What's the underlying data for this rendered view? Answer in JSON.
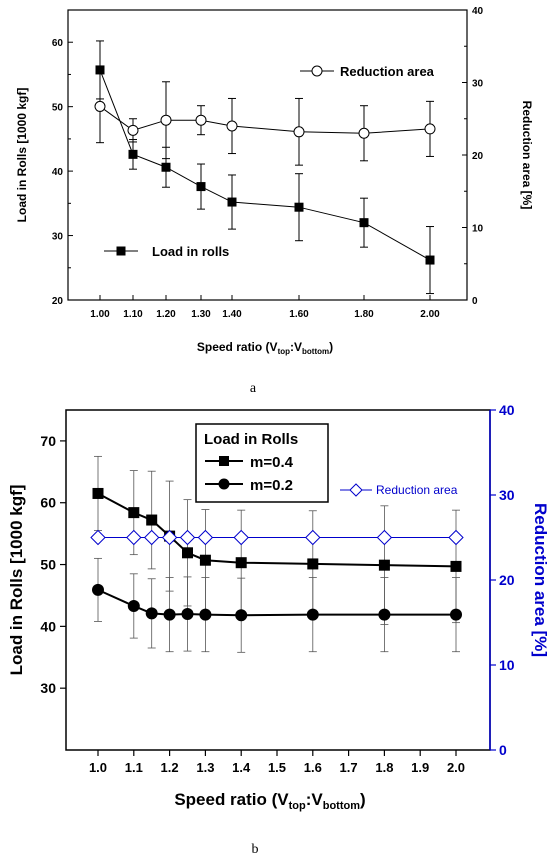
{
  "chart_data": [
    {
      "id": "a",
      "type": "line",
      "caption": "a",
      "xlabel_main": "Speed ratio (V",
      "xlabel_sub1": "top",
      "xlabel_mid": ":V",
      "xlabel_sub2": "bottom",
      "xlabel_end": ")",
      "ylabel_left": "Load in Rolls [1000 kgf]",
      "ylabel_right": "Reduction area [%]",
      "x_ticks": [
        "1.00",
        "1.10",
        "1.20",
        "1.30",
        "1.40",
        "1.60",
        "1.80",
        "2.00"
      ],
      "x_categorical": true,
      "ylim_left": [
        20,
        65
      ],
      "yticks_left": [
        "20",
        "30",
        "40",
        "50",
        "60"
      ],
      "ylim_right": [
        0,
        40
      ],
      "yticks_right": [
        "0",
        "10",
        "20",
        "30",
        "40"
      ],
      "series": [
        {
          "name": "Load in rolls",
          "axis": "left",
          "marker": "square-filled",
          "values": [
            55.7,
            42.6,
            40.6,
            37.6,
            35.2,
            34.4,
            32.0,
            26.2
          ],
          "err": [
            4.5,
            2.3,
            3.1,
            3.5,
            4.2,
            5.2,
            3.8,
            5.2
          ]
        },
        {
          "name": "Reduction area",
          "axis": "right",
          "marker": "circle-open",
          "values": [
            26.7,
            23.4,
            24.8,
            24.8,
            24.0,
            23.2,
            23.0,
            23.6
          ],
          "err": [
            5.0,
            1.6,
            5.3,
            2.0,
            3.8,
            4.6,
            3.8,
            3.8
          ]
        }
      ]
    },
    {
      "id": "b",
      "type": "line",
      "caption": "b",
      "xlabel_main": "Speed ratio (V",
      "xlabel_sub1": "top",
      "xlabel_mid": ":V",
      "xlabel_sub2": "bottom",
      "xlabel_end": ")",
      "ylabel_left": "Load in Rolls [1000 kgf]",
      "ylabel_right": "Reduction area [%]",
      "xlim": [
        0.9,
        2.1
      ],
      "x_ticks": [
        "1.0",
        "1.1",
        "1.2",
        "1.3",
        "1.4",
        "1.5",
        "1.6",
        "1.7",
        "1.8",
        "1.9",
        "2.0"
      ],
      "ylim_left": [
        20,
        75
      ],
      "yticks_left": [
        "30",
        "40",
        "50",
        "60",
        "70"
      ],
      "ylim_right": [
        0,
        40
      ],
      "yticks_right": [
        "0",
        "10",
        "20",
        "30",
        "40"
      ],
      "legend_title": "Load in Rolls",
      "series": [
        {
          "name": "m=0.4",
          "axis": "left",
          "marker": "square-filled",
          "x": [
            1.0,
            1.1,
            1.15,
            1.2,
            1.25,
            1.3,
            1.4,
            1.6,
            1.8,
            2.0
          ],
          "values": [
            61.5,
            58.4,
            57.2,
            54.6,
            51.9,
            50.7,
            50.3,
            50.1,
            49.9,
            49.7
          ],
          "err": [
            6.0,
            6.8,
            7.9,
            8.9,
            8.6,
            8.2,
            8.5,
            8.6,
            9.6,
            9.1
          ]
        },
        {
          "name": "m=0.2",
          "axis": "left",
          "marker": "circle-filled",
          "x": [
            1.0,
            1.1,
            1.15,
            1.2,
            1.25,
            1.3,
            1.4,
            1.6,
            1.8,
            2.0
          ],
          "values": [
            45.9,
            43.3,
            42.1,
            41.9,
            42.0,
            41.9,
            41.8,
            41.9,
            41.9,
            41.9
          ],
          "err": [
            5.1,
            5.2,
            5.6,
            6.0,
            6.0,
            6.0,
            6.0,
            6.0,
            6.0,
            6.0
          ]
        },
        {
          "name": "Reduction area",
          "axis": "right",
          "marker": "diamond-open",
          "color": "#0000cc",
          "x": [
            1.0,
            1.1,
            1.15,
            1.2,
            1.25,
            1.3,
            1.4,
            1.6,
            1.8,
            2.0
          ],
          "values": [
            25,
            25,
            25,
            25,
            25,
            25,
            25,
            25,
            25,
            25
          ]
        }
      ]
    }
  ]
}
